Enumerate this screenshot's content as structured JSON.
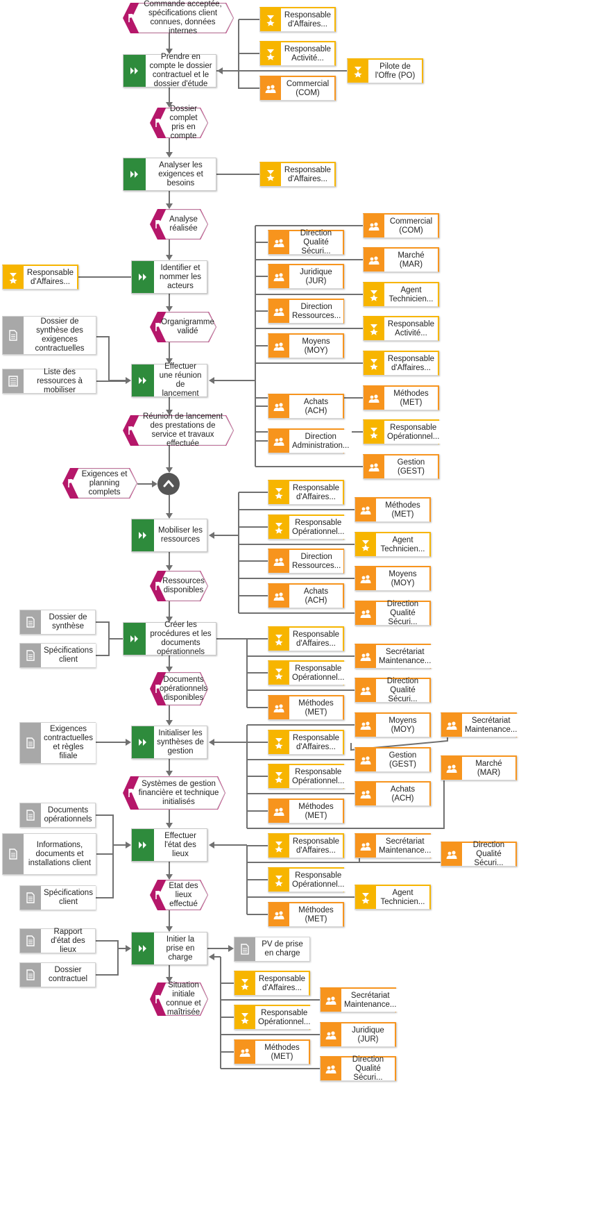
{
  "colors": {
    "function": "#2e8b3c",
    "event": "#b5176a",
    "role": "#f7b500",
    "unit": "#f7941d",
    "document": "#a8a8a8",
    "line": "#707070",
    "gate": "#555555"
  },
  "icons": {
    "function": "double-chevron-right-icon",
    "event": "flag-icon",
    "role": "role-star-icon",
    "unit": "org-unit-people-icon",
    "document": "document-icon",
    "list_document": "list-document-icon",
    "gate": "and-gate-icon"
  },
  "events": [
    {
      "id": "e1",
      "text": "Commande acceptée, spécifications client connues, données internes"
    },
    {
      "id": "e2",
      "text": "Dossier complet pris en compte"
    },
    {
      "id": "e3",
      "text": "Analyse réalisée"
    },
    {
      "id": "e4",
      "text": "Organigramme validé"
    },
    {
      "id": "e5",
      "text": "Réunion de lancement des prestations de service et travaux effectuée"
    },
    {
      "id": "e6",
      "text": "Exigences et planning complets"
    },
    {
      "id": "e7",
      "text": "Ressources disponibles"
    },
    {
      "id": "e8",
      "text": "Documents opérationnels disponibles"
    },
    {
      "id": "e9",
      "text": "Systèmes de gestion financière et technique initialisés"
    },
    {
      "id": "e10",
      "text": "Etat des lieux effectué"
    },
    {
      "id": "e11",
      "text": "Situation initiale connue et maîtrisée"
    }
  ],
  "functions": [
    {
      "id": "f1",
      "text": "Prendre en compte le dossier contractuel et le dossier d'étude"
    },
    {
      "id": "f2",
      "text": "Analyser les exigences et besoins"
    },
    {
      "id": "f3",
      "text": "Identifier et nommer les acteurs"
    },
    {
      "id": "f4",
      "text": "Effectuer une réunion de lancement"
    },
    {
      "id": "f5",
      "text": "Mobiliser les ressources"
    },
    {
      "id": "f6",
      "text": "Créer les procédures et les documents opérationnels"
    },
    {
      "id": "f7",
      "text": "Initialiser les synthèses de gestion"
    },
    {
      "id": "f8",
      "text": "Effectuer l'état des lieux"
    },
    {
      "id": "f9",
      "text": "Initier la prise en charge"
    }
  ],
  "documents": [
    {
      "id": "d1",
      "text": "Dossier de synthèse des exigences contractuelles",
      "kind": "document"
    },
    {
      "id": "d2",
      "text": "Liste des ressources à mobiliser",
      "kind": "list"
    },
    {
      "id": "d3",
      "text": "Dossier de synthèse",
      "kind": "document"
    },
    {
      "id": "d4",
      "text": "Spécifications client",
      "kind": "document"
    },
    {
      "id": "d5",
      "text": "Exigences contractuelles et règles filiale",
      "kind": "document"
    },
    {
      "id": "d6",
      "text": "Documents opérationnels",
      "kind": "document"
    },
    {
      "id": "d7",
      "text": "Informations, documents et installations client",
      "kind": "document"
    },
    {
      "id": "d8",
      "text": "Spécifications client",
      "kind": "document"
    },
    {
      "id": "d9",
      "text": "Rapport d'état des lieux",
      "kind": "document"
    },
    {
      "id": "d10",
      "text": "Dossier contractuel",
      "kind": "document"
    },
    {
      "id": "d11",
      "text": "PV de prise en charge",
      "kind": "document"
    }
  ],
  "resources": [
    {
      "id": "r1",
      "text": "Responsable d'Affaires...",
      "kind": "role"
    },
    {
      "id": "r2",
      "text": "Responsable Activité...",
      "kind": "role"
    },
    {
      "id": "r3",
      "text": "Commercial (COM)",
      "kind": "unit"
    },
    {
      "id": "r4",
      "text": "Pilote de l'Offre (PO)",
      "kind": "role"
    },
    {
      "id": "r5",
      "text": "Responsable d'Affaires...",
      "kind": "role"
    },
    {
      "id": "r6",
      "text": "Responsable d'Affaires...",
      "kind": "role"
    },
    {
      "id": "r7",
      "text": "Commercial (COM)",
      "kind": "unit"
    },
    {
      "id": "r8",
      "text": "Direction Qualité Sécuri...",
      "kind": "unit"
    },
    {
      "id": "r9",
      "text": "Marché (MAR)",
      "kind": "unit"
    },
    {
      "id": "r10",
      "text": "Juridique (JUR)",
      "kind": "unit"
    },
    {
      "id": "r11",
      "text": "Agent Technicien...",
      "kind": "role"
    },
    {
      "id": "r12",
      "text": "Direction Ressources...",
      "kind": "unit"
    },
    {
      "id": "r13",
      "text": "Responsable Activité...",
      "kind": "role"
    },
    {
      "id": "r14",
      "text": "Moyens (MOY)",
      "kind": "unit"
    },
    {
      "id": "r15",
      "text": "Responsable d'Affaires...",
      "kind": "role"
    },
    {
      "id": "r16",
      "text": "Méthodes (MET)",
      "kind": "unit"
    },
    {
      "id": "r17",
      "text": "Achats (ACH)",
      "kind": "unit"
    },
    {
      "id": "r18",
      "text": "Responsable Opérationnel...",
      "kind": "role"
    },
    {
      "id": "r19",
      "text": "Direction Administration...",
      "kind": "unit"
    },
    {
      "id": "r20",
      "text": "Gestion (GEST)",
      "kind": "unit"
    },
    {
      "id": "r21",
      "text": "Responsable d'Affaires...",
      "kind": "role"
    },
    {
      "id": "r22",
      "text": "Méthodes (MET)",
      "kind": "unit"
    },
    {
      "id": "r23",
      "text": "Responsable Opérationnel...",
      "kind": "role"
    },
    {
      "id": "r24",
      "text": "Agent Technicien...",
      "kind": "role"
    },
    {
      "id": "r25",
      "text": "Direction Ressources...",
      "kind": "unit"
    },
    {
      "id": "r26",
      "text": "Moyens (MOY)",
      "kind": "unit"
    },
    {
      "id": "r27",
      "text": "Achats (ACH)",
      "kind": "unit"
    },
    {
      "id": "r28",
      "text": "Direction Qualité Sécuri...",
      "kind": "unit"
    },
    {
      "id": "r29",
      "text": "Responsable d'Affaires...",
      "kind": "role"
    },
    {
      "id": "r30",
      "text": "Secrétariat Maintenance...",
      "kind": "unit"
    },
    {
      "id": "r31",
      "text": "Responsable Opérationnel...",
      "kind": "role"
    },
    {
      "id": "r32",
      "text": "Direction Qualité Sécuri...",
      "kind": "unit"
    },
    {
      "id": "r33",
      "text": "Méthodes (MET)",
      "kind": "unit"
    },
    {
      "id": "r34",
      "text": "Moyens (MOY)",
      "kind": "unit"
    },
    {
      "id": "r35",
      "text": "Secrétariat Maintenance...",
      "kind": "unit"
    },
    {
      "id": "r36",
      "text": "Responsable d'Affaires...",
      "kind": "role"
    },
    {
      "id": "r37",
      "text": "Gestion (GEST)",
      "kind": "unit"
    },
    {
      "id": "r38",
      "text": "Marché (MAR)",
      "kind": "unit"
    },
    {
      "id": "r39",
      "text": "Responsable Opérationnel...",
      "kind": "role"
    },
    {
      "id": "r40",
      "text": "Achats (ACH)",
      "kind": "unit"
    },
    {
      "id": "r41",
      "text": "Méthodes (MET)",
      "kind": "unit"
    },
    {
      "id": "r42",
      "text": "Responsable d'Affaires...",
      "kind": "role"
    },
    {
      "id": "r43",
      "text": "Secrétariat Maintenance...",
      "kind": "unit"
    },
    {
      "id": "r44",
      "text": "Direction Qualité Sécuri...",
      "kind": "unit"
    },
    {
      "id": "r45",
      "text": "Responsable Opérationnel...",
      "kind": "role"
    },
    {
      "id": "r46",
      "text": "Agent Technicien...",
      "kind": "role"
    },
    {
      "id": "r47",
      "text": "Méthodes (MET)",
      "kind": "unit"
    },
    {
      "id": "r48",
      "text": "Responsable d'Affaires...",
      "kind": "role"
    },
    {
      "id": "r49",
      "text": "Secrétariat Maintenance...",
      "kind": "unit"
    },
    {
      "id": "r50",
      "text": "Responsable Opérationnel...",
      "kind": "role"
    },
    {
      "id": "r51",
      "text": "Juridique (JUR)",
      "kind": "unit"
    },
    {
      "id": "r52",
      "text": "Méthodes (MET)",
      "kind": "unit"
    },
    {
      "id": "r53",
      "text": "Direction Qualité Sécuri...",
      "kind": "unit"
    }
  ]
}
